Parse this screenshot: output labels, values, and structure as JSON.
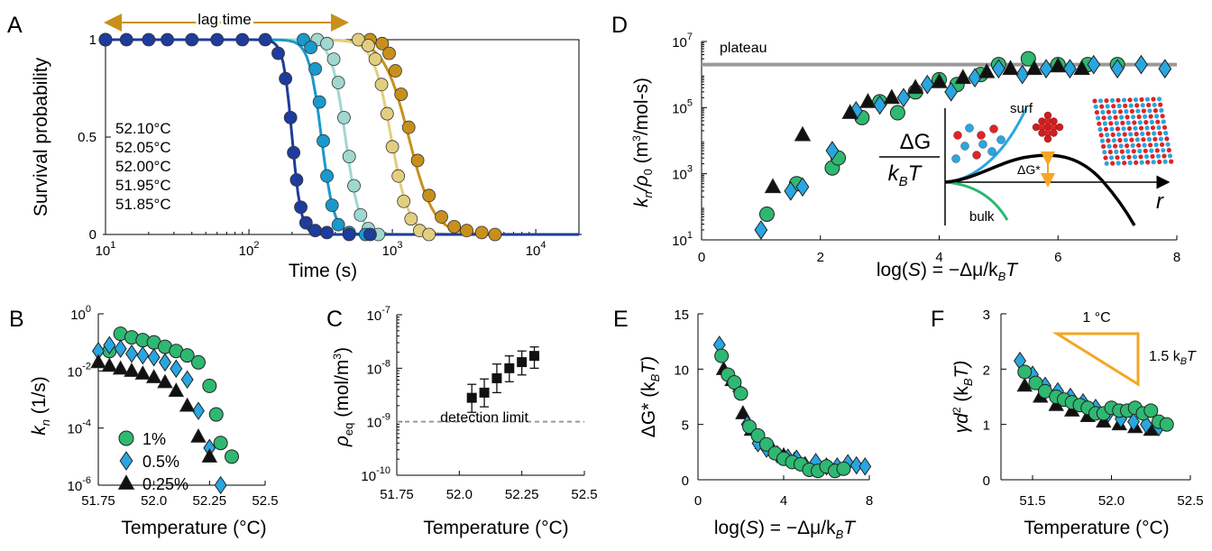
{
  "panels": {
    "A": {
      "label": "A",
      "xlabel": "Time (s)",
      "ylabel": "Survival probability",
      "annotation": "lag time",
      "xticks": [
        {
          "pre": "10",
          "sup": "1"
        },
        {
          "pre": "10",
          "sup": "2"
        },
        {
          "pre": "10",
          "sup": "3"
        },
        {
          "pre": "10",
          "sup": "4"
        }
      ],
      "yticks": [
        "0",
        "0.5",
        "1"
      ]
    },
    "B": {
      "label": "B",
      "xlabel": "Temperature (°C)",
      "ylabel_main": "k",
      "ylabel_sub": "n",
      "ylabel_tail": " (1/s)",
      "xticks": [
        "51.75",
        "52.0",
        "52.25",
        "52.5"
      ],
      "yticks": [
        {
          "pre": "10",
          "sup": "0"
        },
        {
          "pre": "10",
          "sup": "-2"
        },
        {
          "pre": "10",
          "sup": "-4"
        },
        {
          "pre": "10",
          "sup": "-6"
        }
      ]
    },
    "C": {
      "label": "C",
      "xlabel": "Temperature (°C)",
      "ylabel_main": "ρ",
      "ylabel_sub": "eq",
      "ylabel_tail": " (mol/m",
      "ylabel_sup": "3",
      "ylabel_end": ")",
      "note": "detection limit",
      "xticks": [
        "51.75",
        "52.0",
        "52.25",
        "52.5"
      ],
      "yticks": [
        {
          "pre": "10",
          "sup": "-7"
        },
        {
          "pre": "10",
          "sup": "-8"
        },
        {
          "pre": "10",
          "sup": "-9"
        },
        {
          "pre": "10",
          "sup": "-10"
        }
      ]
    },
    "D": {
      "label": "D",
      "xlabel_main": "log(",
      "xlabel_s": "S",
      "xlabel_mid": ") = −Δμ/k",
      "xlabel_sub": "B",
      "xlabel_end": "T",
      "ylabel_a": "k",
      "ylabel_a_sub": "n",
      "ylabel_slash": "/ρ",
      "ylabel_b_sub": "0",
      "ylabel_tail": " (m",
      "ylabel_sup": "3",
      "ylabel_end": "/mol-s)",
      "plateau_label": "plateau",
      "xticks": [
        "0",
        "2",
        "4",
        "6",
        "8"
      ],
      "yticks": [
        {
          "pre": "10",
          "sup": "7"
        },
        {
          "pre": "10",
          "sup": "5"
        },
        {
          "pre": "10",
          "sup": "3"
        },
        {
          "pre": "10",
          "sup": "1"
        }
      ],
      "inset": {
        "num": "ΔG",
        "den_main": "k",
        "den_sub": "B",
        "den_end": "T",
        "surf": "surf",
        "bulk": "bulk",
        "dg": "ΔG*",
        "r": "r"
      }
    },
    "E": {
      "label": "E",
      "ylabel_main": "ΔG*",
      "ylabel_tail": " (k",
      "ylabel_sub": "B",
      "ylabel_end": "T)",
      "xlabel_main": "log(",
      "xlabel_s": "S",
      "xlabel_mid": ") = −Δμ/k",
      "xlabel_sub": "B",
      "xlabel_end": "T",
      "xticks": [
        "0",
        "4",
        "8"
      ],
      "yticks": [
        "0",
        "5",
        "10",
        "15"
      ]
    },
    "F": {
      "label": "F",
      "xlabel": "Temperature (°C)",
      "ylabel_main": "γd",
      "ylabel_sup": "2",
      "ylabel_tail": " (k",
      "ylabel_sub": "B",
      "ylabel_end": "T)",
      "xticks": [
        "51.5",
        "52.0",
        "52.5"
      ],
      "yticks": [
        "0",
        "1",
        "2",
        "3"
      ],
      "slope_top": "1 °C",
      "slope_side": "1.5 k",
      "slope_side_sub": "B",
      "slope_side_end": "T"
    }
  },
  "colors": {
    "green": "#2eb872",
    "blue": "#29a6e0",
    "black": "#111111",
    "gray": "#999999",
    "orange": "#f5a623",
    "t5210": "#c8901b",
    "t5205": "#e2ce7f",
    "t5200": "#9fd8cf",
    "t5195": "#1a99cc",
    "t5185": "#1e3c9c"
  },
  "chart_data": [
    {
      "panel": "A",
      "type": "scatter",
      "title": "",
      "xlabel": "Time (s)",
      "ylabel": "Survival probability",
      "xscale": "log",
      "xlim": [
        10,
        20000
      ],
      "ylim": [
        0,
        1
      ],
      "series": [
        {
          "name": "52.10°C",
          "color": "#c8901b",
          "x": [
            10,
            700,
            850,
            950,
            1050,
            1150,
            1300,
            1500,
            1800,
            2200,
            2700,
            3300,
            4200,
            5200
          ],
          "y": [
            1,
            1,
            0.98,
            0.93,
            0.84,
            0.72,
            0.55,
            0.38,
            0.2,
            0.09,
            0.04,
            0.02,
            0.01,
            0
          ]
        },
        {
          "name": "52.05°C",
          "color": "#e2ce7f",
          "x": [
            10,
            580,
            680,
            760,
            840,
            920,
            1000,
            1100,
            1200,
            1350,
            1550,
            1800
          ],
          "y": [
            1,
            1,
            0.97,
            0.9,
            0.77,
            0.62,
            0.45,
            0.3,
            0.17,
            0.08,
            0.02,
            0
          ]
        },
        {
          "name": "52.00°C",
          "color": "#9fd8cf",
          "x": [
            10,
            300,
            350,
            390,
            420,
            460,
            500,
            540,
            600,
            680,
            800
          ],
          "y": [
            1,
            1,
            0.98,
            0.9,
            0.78,
            0.6,
            0.4,
            0.25,
            0.1,
            0.03,
            0
          ]
        },
        {
          "name": "51.95°C",
          "color": "#1a99cc",
          "x": [
            10,
            240,
            270,
            290,
            310,
            330,
            350,
            380,
            420,
            500,
            650
          ],
          "y": [
            1,
            1,
            0.96,
            0.85,
            0.68,
            0.48,
            0.3,
            0.15,
            0.05,
            0.01,
            0
          ]
        },
        {
          "name": "51.85°C",
          "color": "#1e3c9c",
          "x": [
            10,
            14,
            20,
            27,
            40,
            60,
            90,
            130,
            160,
            180,
            195,
            205,
            215,
            230,
            250,
            290,
            350,
            500,
            700
          ],
          "y": [
            1,
            1,
            1,
            1,
            1,
            1,
            1,
            1,
            0.93,
            0.8,
            0.6,
            0.42,
            0.28,
            0.14,
            0.06,
            0.02,
            0.01,
            0,
            0
          ]
        }
      ]
    },
    {
      "panel": "B",
      "type": "scatter",
      "xlabel": "Temperature (°C)",
      "ylabel": "kn (1/s)",
      "yscale": "log",
      "xlim": [
        51.75,
        52.5
      ],
      "ylim": [
        1e-06,
        1
      ],
      "series": [
        {
          "name": "1%",
          "color": "#2eb872",
          "x": [
            51.8,
            51.85,
            51.9,
            51.95,
            52.0,
            52.05,
            52.1,
            52.15,
            52.2,
            52.25,
            52.28,
            52.3,
            52.35
          ],
          "y": [
            0.05,
            0.2,
            0.15,
            0.12,
            0.1,
            0.07,
            0.05,
            0.035,
            0.02,
            0.003,
            0.0003,
            3e-05,
            1e-05
          ]
        },
        {
          "name": "0.5%",
          "color": "#29a6e0",
          "x": [
            51.75,
            51.8,
            51.85,
            51.9,
            51.95,
            52.0,
            52.05,
            52.1,
            52.15,
            52.2,
            52.25,
            52.3
          ],
          "y": [
            0.05,
            0.08,
            0.06,
            0.04,
            0.035,
            0.03,
            0.02,
            0.012,
            0.005,
            0.0004,
            2e-05,
            1e-06
          ]
        },
        {
          "name": "0.25%",
          "color": "#111111",
          "x": [
            51.75,
            51.8,
            51.85,
            51.9,
            51.95,
            52.0,
            52.05,
            52.1,
            52.15,
            52.2,
            52.25
          ],
          "y": [
            0.02,
            0.015,
            0.012,
            0.01,
            0.008,
            0.006,
            0.004,
            0.002,
            0.0006,
            5e-05,
            1e-05
          ]
        }
      ]
    },
    {
      "panel": "C",
      "type": "scatter",
      "xlabel": "Temperature (°C)",
      "ylabel": "ρeq (mol/m3)",
      "yscale": "log",
      "xlim": [
        51.75,
        52.5
      ],
      "ylim": [
        1e-10,
        1e-07
      ],
      "detection_limit": 1e-09,
      "series": [
        {
          "name": "",
          "color": "#111111",
          "x": [
            52.05,
            52.1,
            52.15,
            52.2,
            52.25,
            52.3
          ],
          "y": [
            2.8e-09,
            3.5e-09,
            6.5e-09,
            1e-08,
            1.3e-08,
            1.7e-08
          ],
          "err_low": [
            1.5e-09,
            1.9e-09,
            3.5e-09,
            5.6e-09,
            7.5e-09,
            1e-08
          ],
          "err_high": [
            5e-09,
            6.3e-09,
            1.2e-08,
            1.7e-08,
            2.1e-08,
            2.5e-08
          ]
        }
      ]
    },
    {
      "panel": "D",
      "type": "scatter",
      "xlabel": "log(S) = −Δμ/kBT",
      "ylabel": "kn/ρ0 (m3/mol-s)",
      "yscale": "log",
      "xlim": [
        0,
        8
      ],
      "ylim": [
        10,
        10000000.0
      ],
      "plateau": 2000000.0,
      "series": [
        {
          "name": "1%",
          "color": "#2eb872",
          "x": [
            1.1,
            1.6,
            2.2,
            2.3,
            2.7,
            3.0,
            3.3,
            3.6,
            4.0,
            4.3,
            4.7,
            5.0,
            5.5,
            6.0,
            6.5,
            7.0
          ],
          "y": [
            60,
            500,
            1500,
            3000,
            50000,
            150000,
            70000,
            300000,
            700000,
            500000,
            1000000,
            2000000,
            3000000,
            2000000,
            2000000,
            2000000
          ]
        },
        {
          "name": "0.5%",
          "color": "#29a6e0",
          "x": [
            1.0,
            1.5,
            1.7,
            2.2,
            2.6,
            3.0,
            3.4,
            3.8,
            4.2,
            4.6,
            5.0,
            5.4,
            5.8,
            6.2,
            6.6,
            7.0,
            7.4,
            7.8
          ],
          "y": [
            20,
            300,
            400,
            5000,
            80000,
            120000,
            200000,
            500000,
            300000,
            800000,
            1500000,
            1000000,
            1500000,
            1500000,
            2000000,
            1500000,
            2000000,
            1500000
          ]
        },
        {
          "name": "0.25%",
          "color": "#111111",
          "x": [
            1.2,
            1.7,
            2.5,
            2.8,
            3.2,
            3.6,
            4.0,
            4.4,
            4.8,
            5.2,
            5.6,
            6.0,
            6.4
          ],
          "y": [
            400,
            15000,
            70000,
            150000,
            200000,
            400000,
            600000,
            800000,
            1200000,
            1500000,
            1500000,
            1800000,
            1500000
          ]
        }
      ]
    },
    {
      "panel": "E",
      "type": "scatter",
      "xlabel": "log(S) = −Δμ/kBT",
      "ylabel": "ΔG* (kBT)",
      "xlim": [
        0,
        8
      ],
      "ylim": [
        0,
        15
      ],
      "series": [
        {
          "name": "1%",
          "color": "#2eb872",
          "x": [
            1.1,
            1.4,
            1.7,
            2.0,
            2.4,
            2.8,
            3.2,
            3.6,
            4.0,
            4.4,
            4.8,
            5.2,
            5.6,
            6.0,
            6.4,
            6.8
          ],
          "y": [
            11.2,
            9.5,
            8.8,
            7.8,
            4.8,
            4.0,
            3.2,
            2.4,
            1.9,
            1.6,
            1.4,
            0.9,
            0.8,
            1.2,
            0.8,
            1.0
          ]
        },
        {
          "name": "0.5%",
          "color": "#29a6e0",
          "x": [
            1.0,
            1.5,
            1.9,
            2.3,
            2.8,
            3.2,
            3.7,
            4.2,
            4.6,
            5.0,
            5.5,
            6.0,
            6.5,
            7.0,
            7.4,
            7.8
          ],
          "y": [
            12.2,
            9.2,
            8.0,
            5.0,
            3.3,
            2.8,
            2.3,
            2.0,
            1.9,
            1.3,
            1.6,
            1.2,
            1.2,
            1.5,
            1.3,
            1.2
          ]
        },
        {
          "name": "0.25%",
          "color": "#111111",
          "x": [
            1.2,
            1.6,
            2.1,
            2.5,
            3.0,
            3.5,
            4.0,
            4.5,
            5.0,
            5.5,
            6.0,
            6.5
          ],
          "y": [
            10.0,
            9.0,
            6.0,
            4.5,
            3.3,
            2.7,
            2.2,
            1.8,
            1.4,
            1.2,
            1.1,
            1.0
          ]
        }
      ]
    },
    {
      "panel": "F",
      "type": "scatter",
      "xlabel": "Temperature (°C)",
      "ylabel": "γd2 (kBT)",
      "xlim": [
        51.3,
        52.5
      ],
      "ylim": [
        0,
        3
      ],
      "series": [
        {
          "name": "1%",
          "color": "#2eb872",
          "x": [
            51.45,
            51.52,
            51.58,
            51.65,
            51.7,
            51.75,
            51.8,
            51.85,
            51.9,
            51.95,
            52.0,
            52.05,
            52.1,
            52.15,
            52.2,
            52.25,
            52.3,
            52.35
          ],
          "y": [
            1.95,
            1.75,
            1.6,
            1.5,
            1.45,
            1.4,
            1.35,
            1.3,
            1.2,
            1.2,
            1.3,
            1.25,
            1.25,
            1.3,
            1.2,
            1.25,
            1.05,
            1.0
          ]
        },
        {
          "name": "0.5%",
          "color": "#29a6e0",
          "x": [
            51.42,
            51.5,
            51.58,
            51.66,
            51.74,
            51.82,
            51.9,
            51.98,
            52.06,
            52.14,
            52.22,
            52.3
          ],
          "y": [
            2.15,
            1.9,
            1.7,
            1.6,
            1.5,
            1.4,
            1.3,
            1.2,
            1.1,
            1.05,
            1.0,
            0.95
          ]
        },
        {
          "name": "0.25%",
          "color": "#111111",
          "x": [
            51.45,
            51.55,
            51.65,
            51.75,
            51.85,
            51.95,
            52.05,
            52.15,
            52.25
          ],
          "y": [
            1.7,
            1.5,
            1.35,
            1.25,
            1.15,
            1.05,
            1.0,
            0.95,
            0.9
          ]
        }
      ]
    }
  ]
}
